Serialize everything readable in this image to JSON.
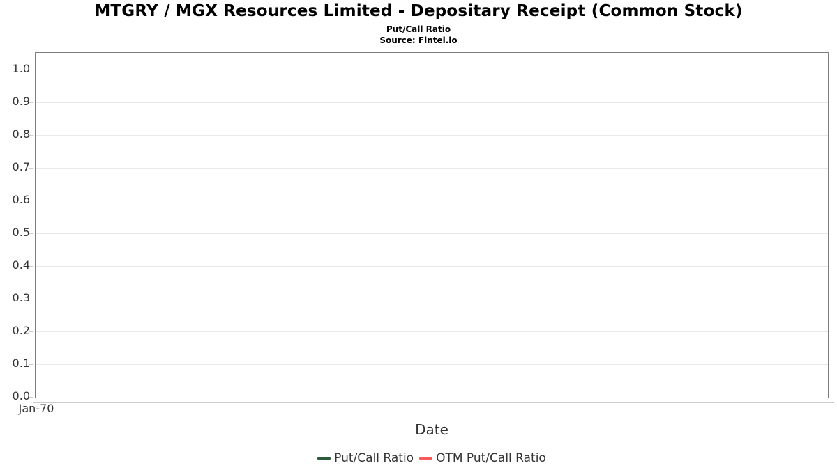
{
  "header": {
    "title": "MTGRY / MGX Resources Limited - Depositary Receipt (Common Stock)",
    "subtitle": "Put/Call Ratio",
    "source": "Source: Fintel.io"
  },
  "chart_data": {
    "type": "line",
    "title": "MTGRY / MGX Resources Limited - Depositary Receipt (Common Stock)",
    "subtitle": "Put/Call Ratio",
    "source": "Source: Fintel.io",
    "xlabel": "Date",
    "ylabel": "",
    "ylim": [
      0.0,
      1.05
    ],
    "ytick_labels": [
      "0.0",
      "0.1",
      "0.2",
      "0.3",
      "0.4",
      "0.5",
      "0.6",
      "0.7",
      "0.8",
      "0.9",
      "1.0"
    ],
    "xtick_labels": [
      "Jan-70"
    ],
    "grid": true,
    "legend_position": "bottom",
    "series": [
      {
        "name": "Put/Call Ratio",
        "color": "#2a5c3a",
        "x": [],
        "values": []
      },
      {
        "name": "OTM Put/Call Ratio",
        "color": "#f85a5a",
        "x": [],
        "values": []
      }
    ]
  },
  "colors": {
    "plot_border": "#7d7d7d",
    "gridline": "#e8e8e8",
    "axis_line": "#cccccc",
    "label_text": "#333333",
    "title_text": "#000000"
  }
}
